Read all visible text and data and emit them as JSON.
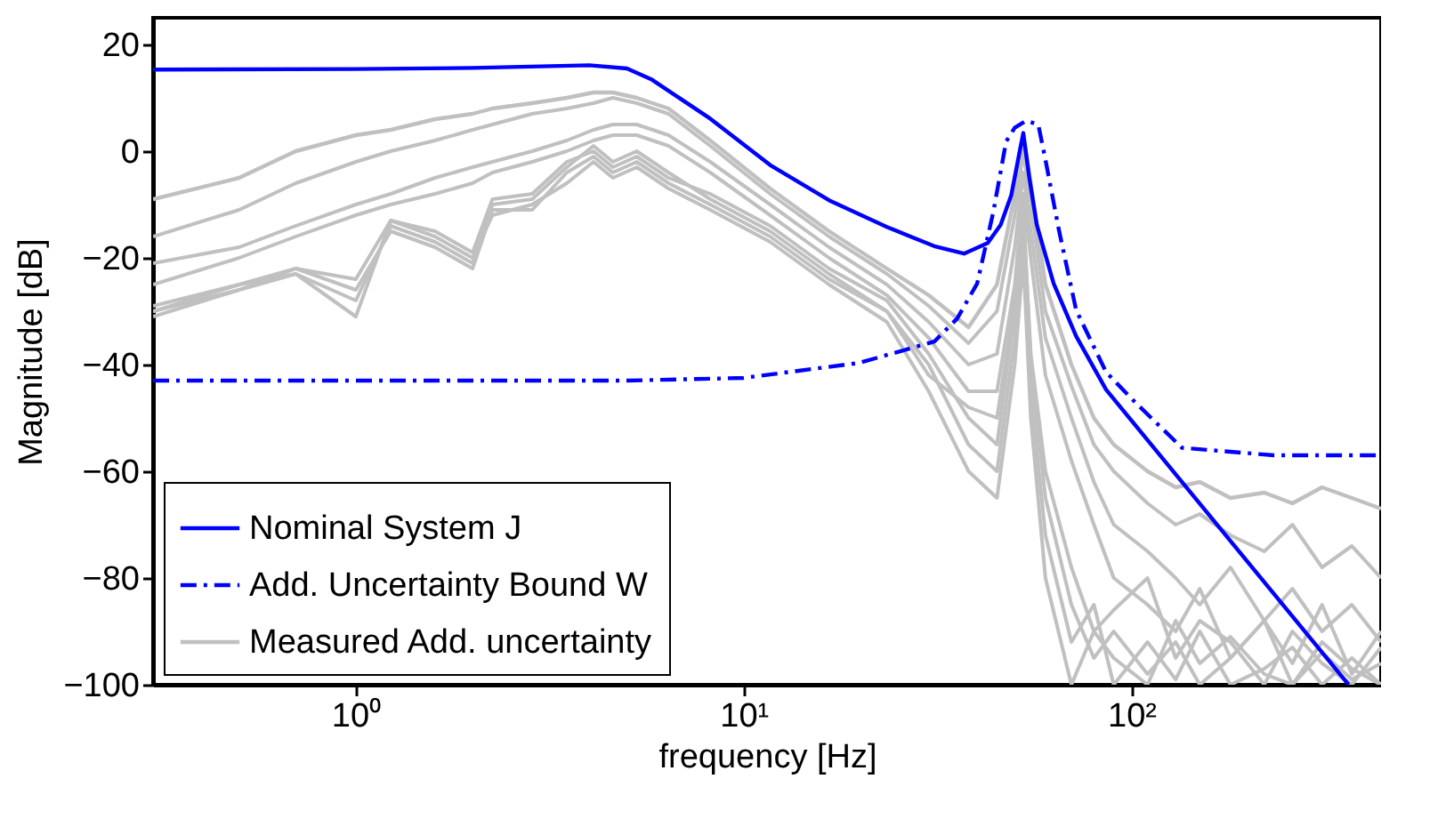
{
  "chart_data": {
    "type": "line",
    "xlabel": "frequency [Hz]",
    "ylabel": "Magnitude [dB]",
    "log": "x",
    "grid": false,
    "legend": "bottom left",
    "xlim": [
      0.3,
      440
    ],
    "xticks": [
      {
        "value": 1,
        "label": "10⁰"
      },
      {
        "value": 10,
        "label": "10¹"
      },
      {
        "value": 100,
        "label": "10²"
      }
    ],
    "ylim": [
      -100,
      25
    ],
    "yticks": [
      -100,
      -80,
      -60,
      -40,
      -20,
      0,
      20
    ],
    "x": [
      0.3,
      0.5,
      0.7,
      1,
      1.23,
      1.6,
      2,
      2.25,
      2.85,
      3.5,
      4.1,
      4.6,
      5.3,
      6.4,
      8.2,
      11.7,
      16.6,
      23.4,
      30,
      38,
      45,
      50,
      52.6,
      55,
      60,
      70,
      80,
      90,
      110,
      130,
      150,
      180,
      220,
      260,
      310,
      370,
      440
    ],
    "series": [
      {
        "name": "Nominal System J",
        "color": "#0000ff",
        "line_style": "solid",
        "x": [
          0.3,
          1,
          2,
          3,
          4,
          5,
          5.8,
          8.2,
          11.7,
          16.6,
          23.4,
          31,
          37,
          42.6,
          46,
          49,
          51.5,
          52.6,
          54.5,
          57,
          63,
          72,
          86,
          363
        ],
        "values": [
          15.3,
          15.4,
          15.6,
          15.9,
          16.1,
          15.5,
          13.4,
          6.1,
          -2.6,
          -9.2,
          -14.2,
          -17.8,
          -19.2,
          -17.2,
          -13.8,
          -8.2,
          0,
          3.4,
          -4.9,
          -13.8,
          -24.8,
          -34.7,
          -44.7,
          -100
        ]
      },
      {
        "name": "Add. Uncertainty Bound W",
        "color": "#0000ff",
        "line_style": "dashdot",
        "x": [
          0.3,
          5,
          10,
          19.8,
          31,
          35.5,
          40,
          44,
          47.5,
          50,
          53.5,
          57.5,
          60,
          65,
          72,
          86,
          102,
          135,
          233,
          440
        ],
        "values": [
          -43,
          -43,
          -42.5,
          -39.7,
          -35.7,
          -31.4,
          -24.8,
          -11.5,
          1.8,
          4.4,
          5.7,
          5,
          -1.6,
          -14.8,
          -29.8,
          -41.4,
          -47,
          -55.6,
          -57,
          -57
        ]
      },
      {
        "name": "Measured Add. uncertainty",
        "color": "#c0c0c0",
        "line_style": "solid",
        "values": [
          -9,
          -5,
          0,
          3,
          4,
          6,
          7,
          8,
          9,
          10,
          11,
          11,
          10,
          8,
          2,
          -7,
          -15,
          -22,
          -27,
          -33,
          -25,
          -8,
          3,
          -6,
          -25,
          -40,
          -50,
          -55,
          -60,
          -63,
          -62,
          -65,
          -64,
          -66,
          -63,
          -65,
          -67
        ]
      },
      {
        "color": "#c0c0c0",
        "line_style": "solid",
        "values": [
          -16,
          -11,
          -6,
          -2,
          0,
          2,
          4,
          5,
          7,
          8,
          9,
          10,
          9,
          7,
          1,
          -8,
          -16,
          -23,
          -29,
          -36,
          -30,
          -12,
          0,
          -10,
          -30,
          -44,
          -55,
          -60,
          -66,
          -70,
          -68,
          -72,
          -75,
          -70,
          -78,
          -74,
          -80
        ]
      },
      {
        "color": "#c0c0c0",
        "line_style": "solid",
        "values": [
          -21,
          -18,
          -14,
          -10,
          -8,
          -5,
          -3,
          -2,
          0,
          2,
          4,
          5,
          5,
          3,
          -2,
          -10,
          -18,
          -25,
          -32,
          -40,
          -38,
          -18,
          -4,
          -15,
          -35,
          -50,
          -62,
          -70,
          -75,
          -80,
          -85,
          -78,
          -88,
          -82,
          -90,
          -85,
          -92
        ]
      },
      {
        "color": "#c0c0c0",
        "line_style": "solid",
        "values": [
          -25,
          -20,
          -16,
          -12,
          -10,
          -8,
          -6,
          -4,
          -2,
          0,
          2,
          3,
          3,
          1,
          -4,
          -12,
          -20,
          -27,
          -35,
          -45,
          -45,
          -25,
          -8,
          -20,
          -42,
          -58,
          -70,
          -80,
          -85,
          -90,
          -82,
          -95,
          -88,
          -96,
          -85,
          -98,
          -90
        ]
      },
      {
        "color": "#c0c0c0",
        "line_style": "solid",
        "values": [
          -30,
          -25,
          -23,
          -31,
          -13,
          -15,
          -19,
          -9,
          -8,
          -2,
          0,
          -3,
          -1,
          -5,
          -8,
          -14,
          -22,
          -28,
          -38,
          -50,
          -55,
          -30,
          -10,
          -40,
          -65,
          -85,
          -95,
          -90,
          -98,
          -92,
          -100,
          -95,
          -88,
          -100,
          -94,
          -99,
          -96
        ]
      },
      {
        "color": "#c0c0c0",
        "line_style": "solid",
        "values": [
          -31,
          -26,
          -23,
          -28,
          -14,
          -17,
          -21,
          -10,
          -9,
          -3,
          1,
          -2,
          0,
          -4,
          -9,
          -15,
          -23,
          -30,
          -40,
          -55,
          -60,
          -35,
          -15,
          -45,
          -72,
          -92,
          -85,
          -100,
          -92,
          -99,
          -90,
          -100,
          -97,
          -93,
          -100,
          -95,
          -100
        ]
      },
      {
        "color": "#c0c0c0",
        "line_style": "solid",
        "values": [
          -29,
          -25,
          -22,
          -26,
          -15,
          -18,
          -22,
          -11,
          -11,
          -4,
          -1,
          -4,
          -2,
          -6,
          -10,
          -16,
          -24,
          -30,
          -42,
          -48,
          -50,
          -28,
          -12,
          -38,
          -60,
          -78,
          -90,
          -86,
          -80,
          -95,
          -88,
          -92,
          -100,
          -90,
          -96,
          -100,
          -93
        ]
      },
      {
        "color": "#c0c0c0",
        "line_style": "solid",
        "values": [
          -30,
          -26,
          -22,
          -24,
          -13,
          -16,
          -20,
          -12,
          -10,
          -6,
          -2,
          -5,
          -3,
          -7,
          -11,
          -17,
          -25,
          -32,
          -45,
          -60,
          -65,
          -40,
          -20,
          -50,
          -80,
          -100,
          -90,
          -95,
          -100,
          -88,
          -96,
          -91,
          -98,
          -100,
          -92,
          -97,
          -100
        ]
      }
    ]
  }
}
